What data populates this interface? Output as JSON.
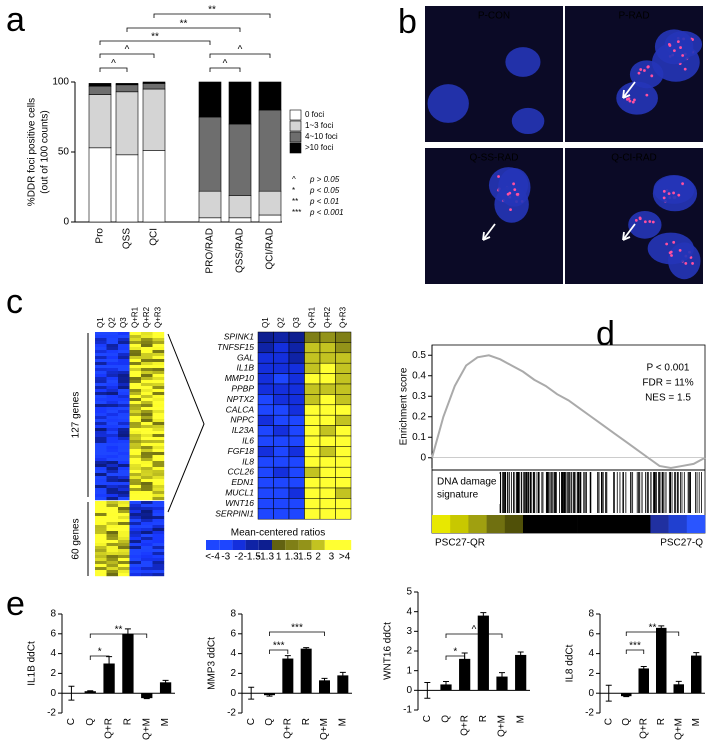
{
  "panel_labels": [
    "a",
    "b",
    "c",
    "d",
    "e"
  ],
  "image_labels": [
    "P-CON",
    "P-RAD",
    "Q-SS-RAD",
    "Q-CI-RAD"
  ],
  "chart_data": [
    {
      "type": "bar",
      "stacked": true,
      "ylabel": [
        "%DDR foci positive cells",
        "(out of 100 counts)"
      ],
      "categories": [
        "Pro",
        "QSS",
        "QCI",
        "PRO/RAD",
        "QSS/RAD",
        "QCI/RAD"
      ],
      "series": [
        {
          "name": "0 foci",
          "color": "#ffffff",
          "values": [
            53,
            48,
            51,
            3,
            3,
            5
          ]
        },
        {
          "name": "1~3 foci",
          "color": "#d4d4d4",
          "values": [
            38,
            45,
            44,
            19,
            16,
            17
          ]
        },
        {
          "name": "4~10 foci",
          "color": "#6e6e6e",
          "values": [
            6,
            5,
            4,
            53,
            51,
            58
          ]
        },
        {
          "name": ">10 foci",
          "color": "#000000",
          "values": [
            2,
            1,
            1,
            25,
            30,
            20
          ]
        }
      ],
      "ylim": [
        0,
        100
      ],
      "yticks": [
        0,
        50,
        100
      ],
      "annotations": [
        "^",
        "^",
        "**",
        "**",
        "**",
        "^",
        "^"
      ],
      "significance_legend": [
        {
          "symbol": "^",
          "text": "p > 0.05"
        },
        {
          "symbol": "*",
          "text": "p < 0.05"
        },
        {
          "symbol": "**",
          "text": "p < 0.01"
        },
        {
          "symbol": "***",
          "text": "p < 0.001"
        }
      ]
    },
    {
      "type": "heatmap",
      "columns": [
        "Q1",
        "Q2",
        "Q3",
        "Q+R1",
        "Q+R2",
        "Q+R3"
      ],
      "groups": [
        "127 genes",
        "60 genes"
      ],
      "rows": [
        "SPINK1",
        "TNFSF15",
        "GAL",
        "IL1B",
        "MMP10",
        "PPBP",
        "NPTX2",
        "CALCA",
        "NPPC",
        "IL23A",
        "IL6",
        "FGF18",
        "IL8",
        "CCL26",
        "EDN1",
        "MUCL1",
        "WNT16",
        "SERPINI1"
      ],
      "values": [
        [
          -1.3,
          -1.5,
          -1.3,
          1.3,
          1.5,
          1.3
        ],
        [
          -1.5,
          -2,
          -1.5,
          2,
          2,
          1.5
        ],
        [
          -2,
          -2,
          -1.5,
          2,
          2,
          2
        ],
        [
          -2,
          -2,
          -2,
          2,
          3,
          2
        ],
        [
          -2,
          -3,
          -2,
          3,
          3,
          2
        ],
        [
          -2,
          -2,
          -2,
          2,
          2,
          2
        ],
        [
          -3,
          -2,
          -2,
          2,
          3,
          2
        ],
        [
          -3,
          -3,
          -2,
          3,
          3,
          3
        ],
        [
          -2,
          -3,
          -3,
          3,
          3,
          2
        ],
        [
          -3,
          -2,
          -3,
          3,
          2,
          3
        ],
        [
          -3,
          -3,
          -3,
          3,
          3,
          3
        ],
        [
          -2,
          -3,
          -2,
          3,
          2,
          3
        ],
        [
          -3,
          -3,
          -3,
          3,
          3,
          3
        ],
        [
          -3,
          -2,
          -3,
          2,
          3,
          3
        ],
        [
          -3,
          -3,
          -3,
          3,
          3,
          3
        ],
        [
          -3,
          -3,
          -2,
          3,
          3,
          2
        ],
        [
          -3,
          -3,
          -3,
          3,
          3,
          3
        ],
        [
          -3,
          -3,
          -3,
          3,
          3,
          3
        ]
      ],
      "scale_title": "Mean-centered ratios",
      "scale_ticks": [
        {
          "value": -4,
          "label": "<-4"
        },
        -3,
        -2,
        -1.5,
        -1.3,
        1,
        1.3,
        1.5,
        2,
        3,
        {
          "value": 4,
          "label": ">4"
        }
      ]
    },
    {
      "type": "line",
      "ylabel": "Enrichment score",
      "color": "#aaaaaa",
      "values": [
        0,
        0.2,
        0.35,
        0.45,
        0.49,
        0.5,
        0.48,
        0.45,
        0.42,
        0.38,
        0.35,
        0.31,
        0.28,
        0.24,
        0.2,
        0.16,
        0.12,
        0.08,
        0.04,
        0,
        -0.04,
        -0.05,
        -0.04,
        -0.03,
        0
      ],
      "ylim": [
        -0.05,
        0.55
      ],
      "yticks": [
        0,
        0.1,
        0.2,
        0.3,
        0.4,
        0.5
      ],
      "annotations": [
        "P < 0.001",
        "FDR = 11%",
        "NES = 1.5"
      ],
      "track_label": [
        "DNA damage",
        "signature"
      ],
      "ends": [
        "PSC27-QR",
        "PSC27-Q"
      ]
    },
    {
      "type": "bar",
      "ylabel": "IL1B ddCt",
      "color": "#000000",
      "categories": [
        "C",
        "Q",
        "Q+R",
        "R",
        "Q+M",
        "M"
      ],
      "values": [
        0,
        0.2,
        3,
        6,
        -0.5,
        1.1
      ],
      "errors": [
        0.7,
        0.05,
        0.7,
        0.5,
        0.05,
        0.2
      ],
      "ylim": [
        -2,
        8
      ],
      "yticks": [
        -2,
        0,
        2,
        4,
        6,
        8
      ],
      "annotations": [
        "*",
        "**"
      ]
    },
    {
      "type": "bar",
      "ylabel": "MMP3 ddCt",
      "color": "#000000",
      "categories": [
        "C",
        "Q",
        "Q+R",
        "R",
        "Q+M",
        "M"
      ],
      "values": [
        0,
        -0.2,
        3.5,
        4.5,
        1.3,
        1.8
      ],
      "errors": [
        0.6,
        0.1,
        0.3,
        0.1,
        0.2,
        0.3
      ],
      "ylim": [
        -2,
        8
      ],
      "yticks": [
        -2,
        0,
        2,
        4,
        6,
        8
      ],
      "annotations": [
        "***",
        "***"
      ]
    },
    {
      "type": "bar",
      "ylabel": "WNT16 ddCt",
      "color": "#000000",
      "categories": [
        "C",
        "Q",
        "Q+R",
        "R",
        "Q+M",
        "M"
      ],
      "values": [
        0,
        0.3,
        1.6,
        3.8,
        0.7,
        1.8
      ],
      "errors": [
        0.4,
        0.15,
        0.3,
        0.15,
        0.2,
        0.15
      ],
      "ylim": [
        -1,
        5
      ],
      "yticks": [
        -1,
        0,
        1,
        2,
        3,
        4,
        5
      ],
      "annotations": [
        "*",
        "^"
      ]
    },
    {
      "type": "bar",
      "ylabel": "IL8 ddCt",
      "color": "#000000",
      "categories": [
        "C",
        "Q",
        "Q+R",
        "R",
        "Q+M",
        "M"
      ],
      "values": [
        0,
        -0.3,
        2.5,
        6.6,
        0.9,
        3.8
      ],
      "errors": [
        0.8,
        0.05,
        0.2,
        0.2,
        0.3,
        0.3
      ],
      "ylim": [
        -2,
        8
      ],
      "yticks": [
        -2,
        0,
        2,
        4,
        6,
        8
      ],
      "annotations": [
        "***",
        "**"
      ]
    }
  ]
}
